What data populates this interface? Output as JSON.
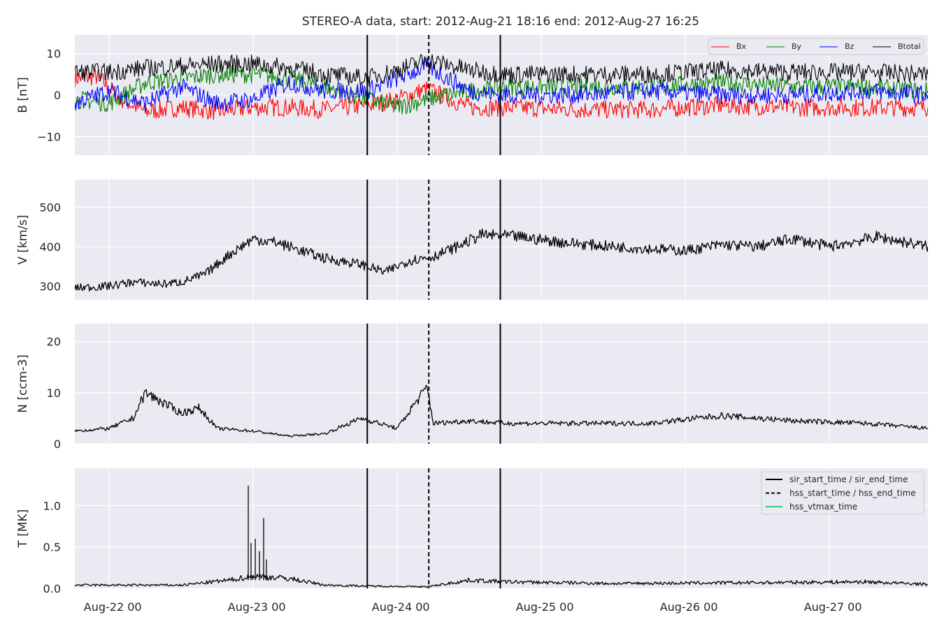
{
  "title": "STEREO-A data, start: 2012-Aug-21 18:16  end: 2012-Aug-27 16:25",
  "colors": {
    "panel_bg": "#eaeaf2",
    "grid": "#ffffff",
    "bx": "#ff0000",
    "by": "#008000",
    "bz": "#0000ff",
    "btotal": "#000000",
    "vtmax": "#2ecc71"
  },
  "x_axis": {
    "range_hours": [
      "2012-08-21 18:16",
      "2012-08-27 16:25"
    ],
    "ticks": [
      {
        "label": "Aug-22 00",
        "time": "2012-08-22 00:00"
      },
      {
        "label": "Aug-23 00",
        "time": "2012-08-23 00:00"
      },
      {
        "label": "Aug-24 00",
        "time": "2012-08-24 00:00"
      },
      {
        "label": "Aug-25 00",
        "time": "2012-08-25 00:00"
      },
      {
        "label": "Aug-26 00",
        "time": "2012-08-26 00:00"
      },
      {
        "label": "Aug-27 00",
        "time": "2012-08-27 00:00"
      }
    ]
  },
  "events": {
    "sir_start_time": "2012-08-23 19:00",
    "hss_start_time": "2012-08-24 05:15",
    "sir_end_time": "2012-08-24 17:10"
  },
  "chart_data": [
    {
      "type": "line",
      "ylabel": "B [nT]",
      "ylim": [
        -14.5,
        14.5
      ],
      "yticks": [
        {
          "v": 10,
          "label": "10"
        },
        {
          "v": 0,
          "label": "0"
        },
        {
          "v": -10,
          "label": "−10"
        }
      ],
      "legend": {
        "placement": "top-right",
        "entries": [
          "Bx",
          "By",
          "Bz",
          "Btotal"
        ]
      },
      "series": [
        {
          "name": "Bx",
          "color": "#ff0000",
          "points": [
            [
              "2012-08-21 18:16",
              4
            ],
            [
              "2012-08-21 22:00",
              4.5
            ],
            [
              "2012-08-22 02:00",
              -1
            ],
            [
              "2012-08-22 06:00",
              -4
            ],
            [
              "2012-08-22 12:00",
              -3
            ],
            [
              "2012-08-22 18:00",
              -4
            ],
            [
              "2012-08-23 00:00",
              -3
            ],
            [
              "2012-08-23 06:00",
              -3
            ],
            [
              "2012-08-23 12:00",
              -3.5
            ],
            [
              "2012-08-23 19:00",
              -2.5
            ],
            [
              "2012-08-24 00:00",
              -1
            ],
            [
              "2012-08-24 05:00",
              1.5
            ],
            [
              "2012-08-24 12:00",
              -3
            ],
            [
              "2012-08-24 18:00",
              -3
            ],
            [
              "2012-08-25 06:00",
              -3.5
            ],
            [
              "2012-08-25 18:00",
              -3.5
            ],
            [
              "2012-08-26 06:00",
              -2.5
            ],
            [
              "2012-08-26 18:00",
              -3
            ],
            [
              "2012-08-27 06:00",
              -3
            ],
            [
              "2012-08-27 16:25",
              -3
            ]
          ]
        },
        {
          "name": "By",
          "color": "#008000",
          "points": [
            [
              "2012-08-21 18:16",
              -1
            ],
            [
              "2012-08-22 00:00",
              -2
            ],
            [
              "2012-08-22 06:00",
              3
            ],
            [
              "2012-08-22 12:00",
              4
            ],
            [
              "2012-08-22 18:00",
              5
            ],
            [
              "2012-08-23 00:00",
              5
            ],
            [
              "2012-08-23 06:00",
              4
            ],
            [
              "2012-08-23 12:00",
              2
            ],
            [
              "2012-08-23 19:00",
              -1
            ],
            [
              "2012-08-24 00:00",
              -3
            ],
            [
              "2012-08-24 05:00",
              -1
            ],
            [
              "2012-08-24 12:00",
              1
            ],
            [
              "2012-08-24 18:00",
              2
            ],
            [
              "2012-08-25 06:00",
              2
            ],
            [
              "2012-08-25 18:00",
              2
            ],
            [
              "2012-08-26 06:00",
              3
            ],
            [
              "2012-08-26 18:00",
              2
            ],
            [
              "2012-08-27 06:00",
              2
            ],
            [
              "2012-08-27 16:25",
              1
            ]
          ]
        },
        {
          "name": "Bz",
          "color": "#0000ff",
          "points": [
            [
              "2012-08-21 18:16",
              -2
            ],
            [
              "2012-08-22 00:00",
              1
            ],
            [
              "2012-08-22 06:00",
              -2
            ],
            [
              "2012-08-22 12:00",
              2
            ],
            [
              "2012-08-22 18:00",
              -2
            ],
            [
              "2012-08-23 00:00",
              -1
            ],
            [
              "2012-08-23 06:00",
              3
            ],
            [
              "2012-08-23 12:00",
              1
            ],
            [
              "2012-08-23 19:00",
              1
            ],
            [
              "2012-08-24 00:00",
              4
            ],
            [
              "2012-08-24 05:00",
              7
            ],
            [
              "2012-08-24 12:00",
              1
            ],
            [
              "2012-08-24 18:00",
              0
            ],
            [
              "2012-08-25 06:00",
              0
            ],
            [
              "2012-08-25 18:00",
              1
            ],
            [
              "2012-08-26 06:00",
              0
            ],
            [
              "2012-08-26 18:00",
              0
            ],
            [
              "2012-08-27 06:00",
              1
            ],
            [
              "2012-08-27 16:25",
              0
            ]
          ]
        },
        {
          "name": "Btotal",
          "color": "#000000",
          "points": [
            [
              "2012-08-21 18:16",
              5.5
            ],
            [
              "2012-08-22 00:00",
              5.5
            ],
            [
              "2012-08-22 06:00",
              6.5
            ],
            [
              "2012-08-22 12:00",
              7
            ],
            [
              "2012-08-22 18:00",
              7.5
            ],
            [
              "2012-08-23 00:00",
              7.5
            ],
            [
              "2012-08-23 06:00",
              6.5
            ],
            [
              "2012-08-23 12:00",
              5
            ],
            [
              "2012-08-23 19:00",
              4
            ],
            [
              "2012-08-24 00:00",
              6
            ],
            [
              "2012-08-24 05:00",
              8.5
            ],
            [
              "2012-08-24 12:00",
              6
            ],
            [
              "2012-08-24 18:00",
              5
            ],
            [
              "2012-08-25 06:00",
              5
            ],
            [
              "2012-08-25 18:00",
              5
            ],
            [
              "2012-08-26 06:00",
              6
            ],
            [
              "2012-08-26 18:00",
              5.5
            ],
            [
              "2012-08-27 06:00",
              5.5
            ],
            [
              "2012-08-27 16:25",
              5
            ]
          ]
        }
      ]
    },
    {
      "type": "line",
      "ylabel": "V [km/s]",
      "ylim": [
        265,
        570
      ],
      "yticks": [
        {
          "v": 500,
          "label": "500"
        },
        {
          "v": 400,
          "label": "400"
        },
        {
          "v": 300,
          "label": "300"
        }
      ],
      "series": [
        {
          "name": "V",
          "color": "#000000",
          "points": [
            [
              "2012-08-21 18:16",
              295
            ],
            [
              "2012-08-22 00:00",
              300
            ],
            [
              "2012-08-22 04:00",
              310
            ],
            [
              "2012-08-22 09:00",
              305
            ],
            [
              "2012-08-22 12:00",
              310
            ],
            [
              "2012-08-22 16:00",
              330
            ],
            [
              "2012-08-22 20:00",
              380
            ],
            [
              "2012-08-23 00:00",
              420
            ],
            [
              "2012-08-23 04:00",
              410
            ],
            [
              "2012-08-23 08:00",
              390
            ],
            [
              "2012-08-23 12:00",
              370
            ],
            [
              "2012-08-23 18:00",
              355
            ],
            [
              "2012-08-23 22:00",
              335
            ],
            [
              "2012-08-24 02:00",
              365
            ],
            [
              "2012-08-24 06:00",
              375
            ],
            [
              "2012-08-24 10:00",
              400
            ],
            [
              "2012-08-24 14:00",
              430
            ],
            [
              "2012-08-24 20:00",
              425
            ],
            [
              "2012-08-25 04:00",
              410
            ],
            [
              "2012-08-25 12:00",
              400
            ],
            [
              "2012-08-25 18:00",
              395
            ],
            [
              "2012-08-26 00:00",
              390
            ],
            [
              "2012-08-26 06:00",
              405
            ],
            [
              "2012-08-26 12:00",
              400
            ],
            [
              "2012-08-26 18:00",
              420
            ],
            [
              "2012-08-27 00:00",
              400
            ],
            [
              "2012-08-27 08:00",
              425
            ],
            [
              "2012-08-27 16:25",
              400
            ]
          ]
        }
      ]
    },
    {
      "type": "line",
      "ylabel": "N [ccm-3]",
      "ylim": [
        0,
        23.5
      ],
      "yticks": [
        {
          "v": 20,
          "label": "20"
        },
        {
          "v": 10,
          "label": "10"
        },
        {
          "v": 0,
          "label": "0"
        }
      ],
      "series": [
        {
          "name": "N",
          "color": "#000000",
          "points": [
            [
              "2012-08-21 18:16",
              2.5
            ],
            [
              "2012-08-22 00:00",
              3
            ],
            [
              "2012-08-22 04:00",
              5
            ],
            [
              "2012-08-22 06:00",
              10
            ],
            [
              "2012-08-22 09:00",
              8
            ],
            [
              "2012-08-22 12:00",
              6
            ],
            [
              "2012-08-22 15:00",
              7
            ],
            [
              "2012-08-22 18:00",
              3
            ],
            [
              "2012-08-23 00:00",
              2.5
            ],
            [
              "2012-08-23 06:00",
              1.5
            ],
            [
              "2012-08-23 12:00",
              2
            ],
            [
              "2012-08-23 18:00",
              5
            ],
            [
              "2012-08-24 00:00",
              3
            ],
            [
              "2012-08-24 03:00",
              8
            ],
            [
              "2012-08-24 05:00",
              11
            ],
            [
              "2012-08-24 06:00",
              4
            ],
            [
              "2012-08-24 12:00",
              4.5
            ],
            [
              "2012-08-24 18:00",
              4
            ],
            [
              "2012-08-25 06:00",
              4
            ],
            [
              "2012-08-25 18:00",
              4
            ],
            [
              "2012-08-26 06:00",
              5.5
            ],
            [
              "2012-08-26 18:00",
              4.5
            ],
            [
              "2012-08-27 06:00",
              4
            ],
            [
              "2012-08-27 16:25",
              3
            ]
          ]
        }
      ]
    },
    {
      "type": "line",
      "ylabel": "T [MK]",
      "ylim": [
        0,
        1.45
      ],
      "yticks": [
        {
          "v": 1.0,
          "label": "1.0"
        },
        {
          "v": 0.5,
          "label": "0.5"
        },
        {
          "v": 0.0,
          "label": "0.0"
        }
      ],
      "legend": {
        "placement": "top-right",
        "entries": [
          "sir_start_time / sir_end_time",
          "hss_start_time / hss_end_time",
          "hss_vtmax_time"
        ]
      },
      "series": [
        {
          "name": "T",
          "color": "#000000",
          "points": [
            [
              "2012-08-21 18:16",
              0.04
            ],
            [
              "2012-08-22 12:00",
              0.04
            ],
            [
              "2012-08-22 20:00",
              0.1
            ],
            [
              "2012-08-23 00:00",
              0.15
            ],
            [
              "2012-08-23 06:00",
              0.12
            ],
            [
              "2012-08-23 12:00",
              0.04
            ],
            [
              "2012-08-23 19:00",
              0.03
            ],
            [
              "2012-08-24 05:00",
              0.02
            ],
            [
              "2012-08-24 12:00",
              0.1
            ],
            [
              "2012-08-24 18:00",
              0.08
            ],
            [
              "2012-08-25 12:00",
              0.06
            ],
            [
              "2012-08-26 12:00",
              0.07
            ],
            [
              "2012-08-27 06:00",
              0.08
            ],
            [
              "2012-08-27 16:25",
              0.05
            ]
          ]
        }
      ]
    }
  ]
}
